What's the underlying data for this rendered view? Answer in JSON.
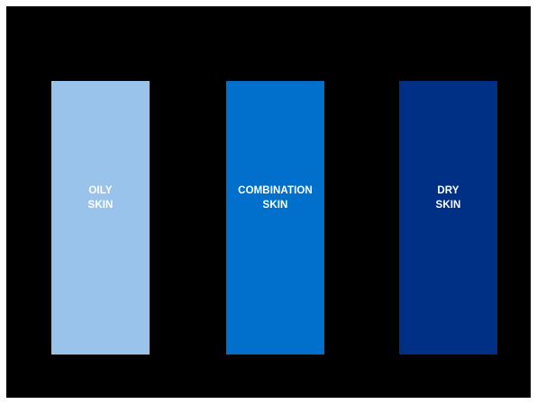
{
  "panels": [
    {
      "label": "OILY\nSKIN",
      "color": "#9ac3eb"
    },
    {
      "label": "COMBINATION\nSKIN",
      "color": "#0070cc"
    },
    {
      "label": "DRY\nSKIN",
      "color": "#002f86"
    }
  ]
}
